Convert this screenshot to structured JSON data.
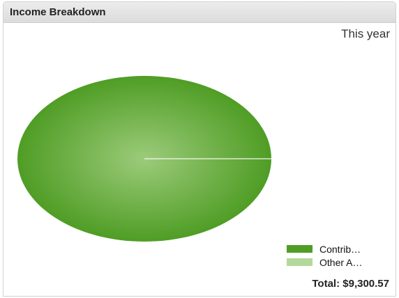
{
  "widget": {
    "title": "Income Breakdown",
    "period": "This year",
    "total_text": "Total: $9,300.57"
  },
  "chart_data": {
    "type": "pie",
    "title": "",
    "slices": [
      {
        "label": "Contrib…",
        "value": 9300.57,
        "color": "#4f9d25",
        "highlight": "#9ccb7a"
      },
      {
        "label": "Other A…",
        "value": 0,
        "color": "#b2d99a",
        "highlight": "#d6ecc7"
      }
    ],
    "legend": {
      "position": "bottom-right"
    },
    "separator_color": "#f3f9ee"
  }
}
